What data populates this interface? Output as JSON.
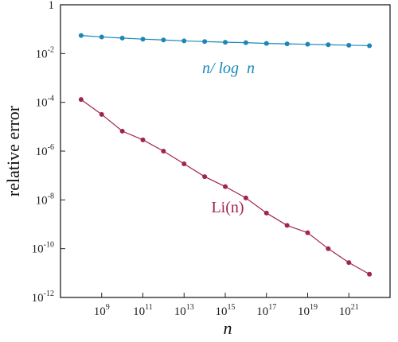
{
  "chart_data": {
    "type": "line",
    "title": "",
    "xlabel": "n",
    "ylabel": "relative error",
    "x_scale": "log",
    "y_scale": "log",
    "xlim": [
      10000000.0,
      1e+23
    ],
    "ylim": [
      1e-12,
      1.0
    ],
    "x_ticks": [
      {
        "base": "10",
        "exp": "9",
        "value": 1000000000.0
      },
      {
        "base": "10",
        "exp": "11",
        "value": 100000000000.0
      },
      {
        "base": "10",
        "exp": "13",
        "value": 10000000000000.0
      },
      {
        "base": "10",
        "exp": "15",
        "value": 1000000000000000.0
      },
      {
        "base": "10",
        "exp": "17",
        "value": 1e+17
      },
      {
        "base": "10",
        "exp": "19",
        "value": 1e+19
      },
      {
        "base": "10",
        "exp": "21",
        "value": 1e+21
      }
    ],
    "y_ticks": [
      {
        "base": "1",
        "exp": "",
        "value": 1
      },
      {
        "base": "10",
        "exp": "-2",
        "value": 0.01
      },
      {
        "base": "10",
        "exp": "-4",
        "value": 0.0001
      },
      {
        "base": "10",
        "exp": "-6",
        "value": 1e-06
      },
      {
        "base": "10",
        "exp": "-8",
        "value": 1e-08
      },
      {
        "base": "10",
        "exp": "-10",
        "value": 1e-10
      },
      {
        "base": "10",
        "exp": "-12",
        "value": 1e-12
      }
    ],
    "grid": false,
    "series": [
      {
        "label": "n/ log  n",
        "color": "#1b87b8",
        "x": [
          100000000.0,
          1000000000.0,
          10000000000.0,
          100000000000.0,
          1000000000000.0,
          10000000000000.0,
          100000000000000.0,
          1000000000000000.0,
          1e+16,
          1e+17,
          1e+18,
          1e+19,
          1e+20,
          1e+21,
          1e+22
        ],
        "y": [
          0.055,
          0.048,
          0.043,
          0.039,
          0.036,
          0.033,
          0.031,
          0.029,
          0.028,
          0.026,
          0.025,
          0.024,
          0.023,
          0.022,
          0.021
        ]
      },
      {
        "label": "Li(n)",
        "color": "#a0244e",
        "x": [
          100000000.0,
          1000000000.0,
          10000000000.0,
          100000000000.0,
          1000000000000.0,
          10000000000000.0,
          100000000000000.0,
          1000000000000000.0,
          1e+16,
          1e+17,
          1e+18,
          1e+19,
          1e+20,
          1e+21,
          1e+22
        ],
        "y": [
          0.00013,
          3.2e-05,
          6.6e-06,
          2.9e-06,
          1e-06,
          3e-07,
          9e-08,
          3.5e-08,
          1.2e-08,
          2.9e-09,
          9e-10,
          4.5e-10,
          1e-10,
          2.7e-11,
          9e-12
        ]
      }
    ]
  }
}
